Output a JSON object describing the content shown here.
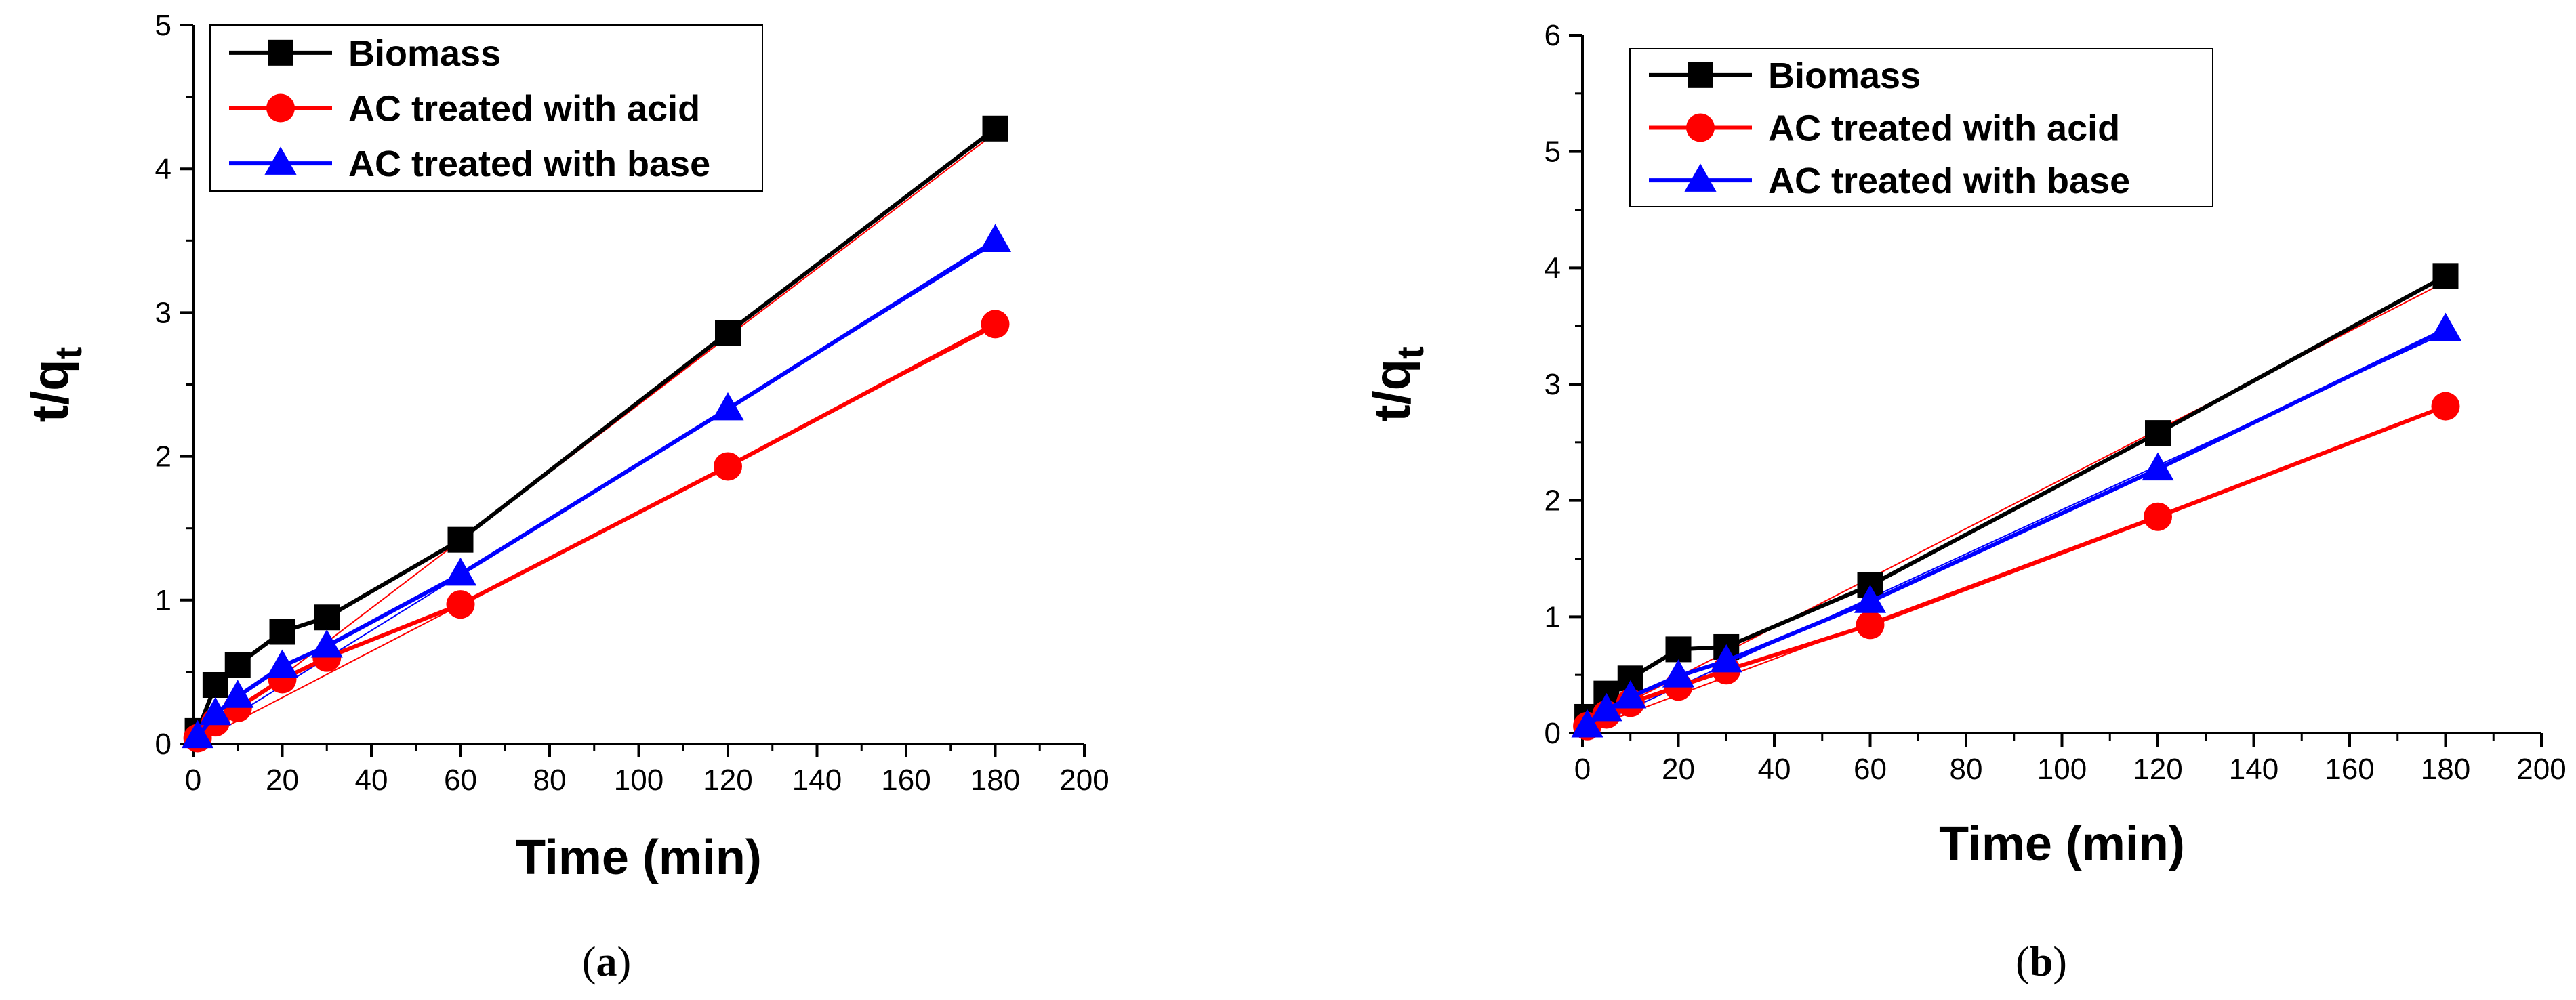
{
  "chart_data": [
    {
      "type": "line",
      "panel_label": "(a)",
      "panel_letter": "a",
      "xlabel": "Time (min)",
      "ylabel": "t/q",
      "ylabel_sub": "t",
      "xlim": [
        0,
        200
      ],
      "ylim": [
        0,
        5
      ],
      "x_ticks": [
        0,
        20,
        40,
        60,
        80,
        100,
        120,
        140,
        160,
        180,
        200
      ],
      "y_ticks": [
        0,
        1,
        2,
        3,
        4,
        5
      ],
      "legend_position": "top-left",
      "x": [
        1,
        5,
        10,
        20,
        30,
        60,
        120,
        180
      ],
      "series": [
        {
          "name": "Biomass",
          "color": "#000000",
          "marker": "square",
          "values": [
            0.09,
            0.41,
            0.55,
            0.78,
            0.88,
            1.42,
            2.86,
            4.28
          ],
          "fit": [
            0.0,
            4.25
          ]
        },
        {
          "name": "AC treated with acid",
          "color": "#ff0000",
          "marker": "circle",
          "values": [
            0.04,
            0.15,
            0.25,
            0.45,
            0.6,
            0.97,
            1.93,
            2.92
          ],
          "fit": [
            0.0,
            2.9
          ]
        },
        {
          "name": "AC treated with base",
          "color": "#0000ff",
          "marker": "triangle",
          "values": [
            0.05,
            0.21,
            0.33,
            0.54,
            0.68,
            1.18,
            2.33,
            3.5
          ],
          "fit": [
            0.02,
            3.48
          ]
        }
      ]
    },
    {
      "type": "line",
      "panel_label": "(b)",
      "panel_letter": "b",
      "xlabel": "Time (min)",
      "ylabel": "t/q",
      "ylabel_sub": "t",
      "xlim": [
        0,
        200
      ],
      "ylim": [
        0,
        6
      ],
      "x_ticks": [
        0,
        20,
        40,
        60,
        80,
        100,
        120,
        140,
        160,
        180,
        200
      ],
      "y_ticks": [
        0,
        1,
        2,
        3,
        4,
        5,
        6
      ],
      "legend_position": "top-left",
      "x": [
        1,
        5,
        10,
        20,
        30,
        60,
        120,
        180
      ],
      "series": [
        {
          "name": "Biomass",
          "color": "#000000",
          "marker": "square",
          "values": [
            0.14,
            0.34,
            0.47,
            0.72,
            0.74,
            1.27,
            2.58,
            3.93
          ],
          "fit": [
            0.06,
            3.88
          ]
        },
        {
          "name": "AC treated with acid",
          "color": "#ff0000",
          "marker": "circle",
          "values": [
            0.06,
            0.16,
            0.26,
            0.4,
            0.54,
            0.93,
            1.86,
            2.81
          ],
          "fit": [
            0.02,
            2.8
          ]
        },
        {
          "name": "AC treated with base",
          "color": "#0000ff",
          "marker": "triangle",
          "values": [
            0.06,
            0.2,
            0.31,
            0.49,
            0.62,
            1.13,
            2.27,
            3.47
          ],
          "fit": [
            0.02,
            3.44
          ]
        }
      ]
    }
  ]
}
